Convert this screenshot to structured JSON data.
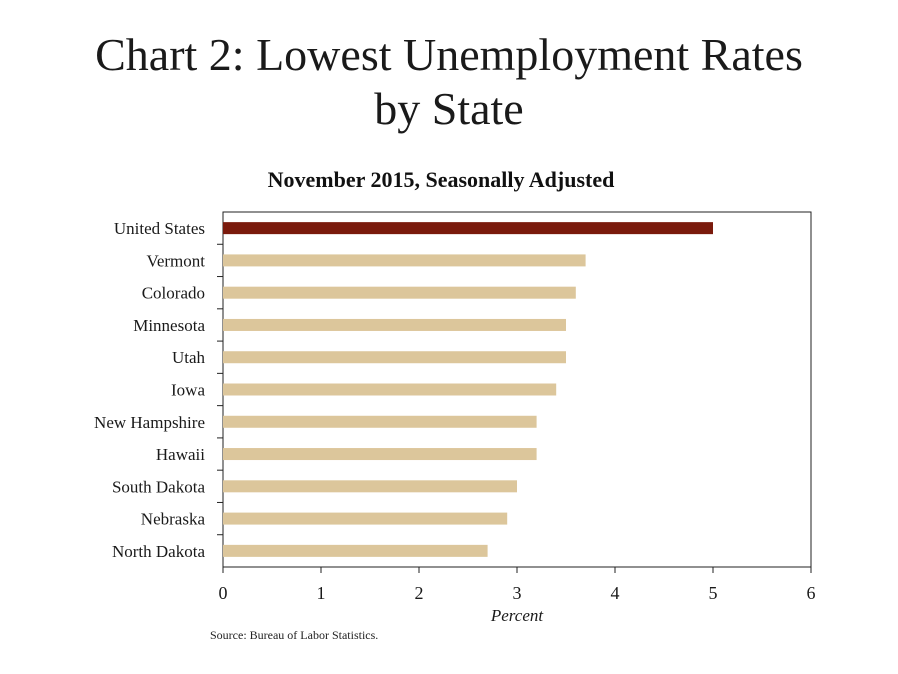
{
  "title_line1": "Chart 2: Lowest Unemployment Rates",
  "title_line2": "by State",
  "subtitle": "November 2015, Seasonally Adjusted",
  "source": "Source: Bureau of Labor Statistics.",
  "colors": {
    "highlight": "#7a1a0c",
    "bar": "#dcc69b"
  },
  "chart_data": {
    "type": "bar",
    "orientation": "horizontal",
    "title": "November 2015, Seasonally Adjusted",
    "xlabel": "Percent",
    "ylabel": "",
    "xlim": [
      0,
      6
    ],
    "xticks": [
      0,
      1,
      2,
      3,
      4,
      5,
      6
    ],
    "categories": [
      "United States",
      "Vermont",
      "Colorado",
      "Minnesota",
      "Utah",
      "Iowa",
      "New Hampshire",
      "Hawaii",
      "South Dakota",
      "Nebraska",
      "North Dakota"
    ],
    "values": [
      5.0,
      3.7,
      3.6,
      3.5,
      3.5,
      3.4,
      3.2,
      3.2,
      3.0,
      2.9,
      2.7
    ],
    "highlighted_category": "United States",
    "grid": false,
    "legend": "none"
  }
}
